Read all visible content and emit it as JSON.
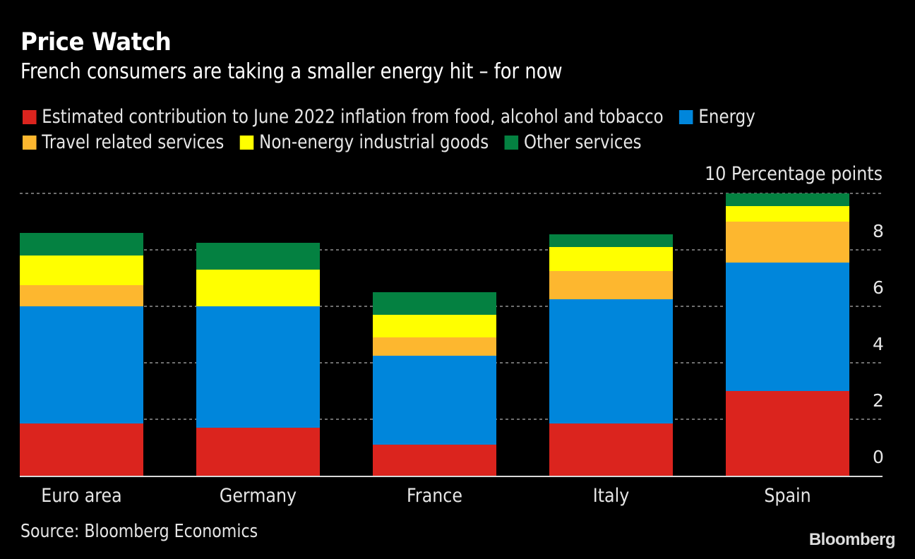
{
  "header": {
    "title": "Price Watch",
    "subtitle": "French consumers are taking a smaller energy hit – for now"
  },
  "legend": [
    {
      "label": "Estimated contribution to June 2022 inflation from food, alcohol and tobacco",
      "color": "#db241e"
    },
    {
      "label": "Energy",
      "color": "#0086db"
    },
    {
      "label": "Travel related services",
      "color": "#fdb72f"
    },
    {
      "label": "Non-energy industrial goods",
      "color": "#ffff00"
    },
    {
      "label": "Other services",
      "color": "#048141"
    }
  ],
  "footer": {
    "source": "Source: Bloomberg Economics",
    "brand": "Bloomberg"
  },
  "chart_data": {
    "type": "bar",
    "stacked": true,
    "title": "Price Watch",
    "subtitle": "French consumers are taking a smaller energy hit – for now",
    "xlabel": "",
    "ylabel": "Percentage points",
    "unit_label": "10 Percentage points",
    "categories": [
      "Euro area",
      "Germany",
      "France",
      "Italy",
      "Spain"
    ],
    "series": [
      {
        "name": "Estimated contribution to June 2022 inflation from food, alcohol and tobacco",
        "color": "#db241e",
        "values": [
          1.85,
          1.7,
          1.1,
          1.85,
          3.0
        ]
      },
      {
        "name": "Energy",
        "color": "#0086db",
        "values": [
          4.15,
          4.3,
          3.15,
          4.4,
          4.55
        ]
      },
      {
        "name": "Travel related services",
        "color": "#fdb72f",
        "values": [
          0.75,
          0.0,
          0.65,
          1.0,
          1.45
        ]
      },
      {
        "name": "Non-energy industrial goods",
        "color": "#ffff00",
        "values": [
          1.05,
          1.3,
          0.8,
          0.85,
          0.55
        ]
      },
      {
        "name": "Other services",
        "color": "#048141",
        "values": [
          0.8,
          0.95,
          0.8,
          0.45,
          0.45
        ]
      }
    ],
    "ylim": [
      0,
      10
    ],
    "yticks": [
      0,
      2,
      4,
      6,
      8,
      10
    ],
    "ytick_labels": [
      "0",
      "2",
      "4",
      "6",
      "8",
      ""
    ],
    "grid": true,
    "y_axis_side": "right",
    "legend_position": "top"
  }
}
